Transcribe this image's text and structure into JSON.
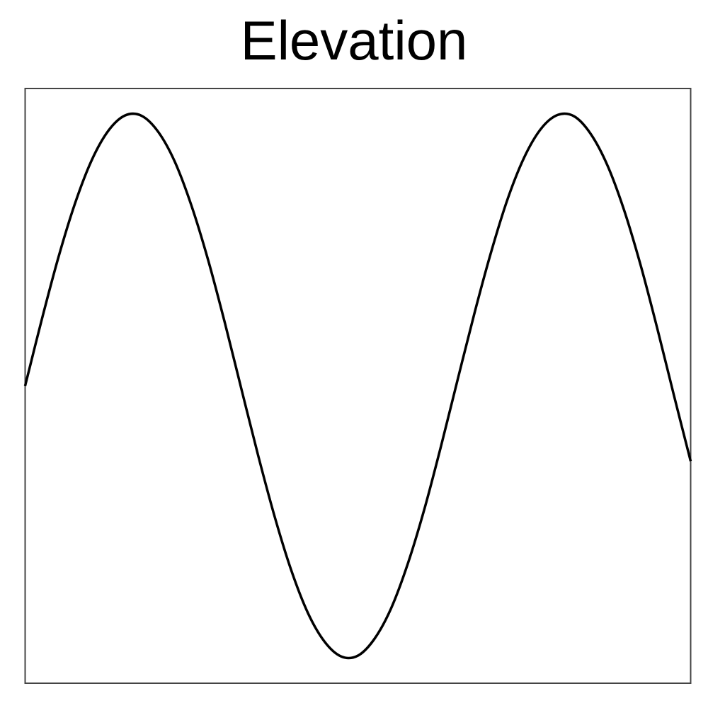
{
  "chart_data": {
    "type": "line",
    "title": "Elevation",
    "xlabel": "",
    "ylabel": "",
    "xlim": [
      0,
      1
    ],
    "ylim": [
      -1.09,
      1.09
    ],
    "grid": false,
    "series": [
      {
        "color": "#000000",
        "x": [
          0.0,
          0.025,
          0.05,
          0.075,
          0.1,
          0.125,
          0.15,
          0.175,
          0.2,
          0.225,
          0.25,
          0.275,
          0.3,
          0.325,
          0.35,
          0.375,
          0.4,
          0.425,
          0.45,
          0.475,
          0.5,
          0.525,
          0.55,
          0.575,
          0.6,
          0.625,
          0.65,
          0.675,
          0.7,
          0.725,
          0.75,
          0.775,
          0.8,
          0.825,
          0.85,
          0.875,
          0.9,
          0.925,
          0.95,
          0.975,
          1.0
        ],
        "y": [
          0.0,
          0.243,
          0.471,
          0.669,
          0.827,
          0.935,
          0.991,
          0.99,
          0.931,
          0.821,
          0.66,
          0.461,
          0.232,
          -0.012,
          -0.254,
          -0.48,
          -0.677,
          -0.833,
          -0.938,
          -0.992,
          -0.989,
          -0.927,
          -0.815,
          -0.652,
          -0.451,
          -0.22,
          0.024,
          0.265,
          0.489,
          0.685,
          0.838,
          0.942,
          0.993,
          0.988,
          0.923,
          0.808,
          0.644,
          0.441,
          0.209,
          -0.036,
          -0.276
        ]
      }
    ]
  }
}
